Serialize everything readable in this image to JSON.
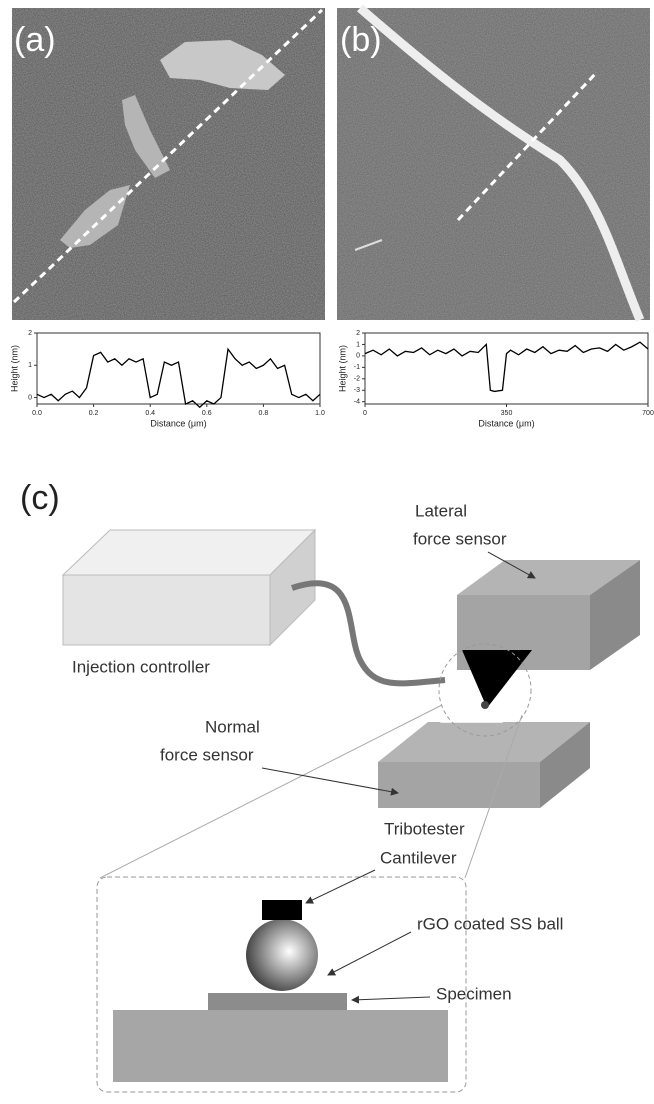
{
  "panels": {
    "a": "(a)",
    "b": "(b)",
    "c": "(c)"
  },
  "chart_data": [
    {
      "type": "line",
      "xlabel": "Distance (μm)",
      "ylabel": "Height (nm)",
      "color": "#000000",
      "x": [
        0,
        0.025,
        0.05,
        0.075,
        0.1,
        0.125,
        0.15,
        0.175,
        0.2,
        0.225,
        0.25,
        0.275,
        0.3,
        0.325,
        0.35,
        0.375,
        0.4,
        0.425,
        0.45,
        0.475,
        0.5,
        0.525,
        0.55,
        0.575,
        0.6,
        0.625,
        0.65,
        0.675,
        0.7,
        0.725,
        0.75,
        0.775,
        0.8,
        0.825,
        0.85,
        0.875,
        0.9,
        0.925,
        0.95,
        0.975,
        1.0
      ],
      "values": [
        0.1,
        0.0,
        0.1,
        -0.1,
        0.1,
        0.2,
        0.0,
        0.3,
        1.3,
        1.4,
        1.1,
        1.2,
        1.0,
        1.2,
        1.1,
        1.2,
        0.0,
        0.1,
        1.1,
        1.0,
        1.1,
        -0.2,
        -0.1,
        -0.3,
        -0.1,
        -0.2,
        0.0,
        1.5,
        1.2,
        1.0,
        1.1,
        0.9,
        1.0,
        1.2,
        0.9,
        1.0,
        0.1,
        0.0,
        0.1,
        -0.1,
        0.1
      ],
      "xlim": [
        0,
        1.0
      ],
      "ylim": [
        -0.2,
        2
      ],
      "xticks": [
        {
          "value": 0,
          "label": "0.0"
        },
        0.2,
        0.4,
        0.6,
        0.8,
        {
          "value": 1,
          "label": "1.0"
        }
      ],
      "yticks": [
        0,
        1,
        2
      ]
    },
    {
      "type": "line",
      "xlabel": "Distance (μm)",
      "ylabel": "Height (nm)",
      "color": "#000000",
      "x": [
        0,
        20,
        40,
        60,
        80,
        100,
        120,
        140,
        160,
        180,
        200,
        220,
        240,
        260,
        280,
        300,
        310,
        320,
        340,
        350,
        360,
        380,
        400,
        420,
        440,
        460,
        480,
        500,
        520,
        540,
        560,
        580,
        600,
        620,
        640,
        660,
        680,
        700
      ],
      "values": [
        0.2,
        0.5,
        0.1,
        0.6,
        0.0,
        0.4,
        0.3,
        0.7,
        0.1,
        0.5,
        0.2,
        0.6,
        0.0,
        0.4,
        0.3,
        1.0,
        -3.0,
        -3.1,
        -3.0,
        0.2,
        0.5,
        0.1,
        0.6,
        0.3,
        0.8,
        0.2,
        0.5,
        0.4,
        0.9,
        0.3,
        0.6,
        0.7,
        0.4,
        1.0,
        0.5,
        0.8,
        1.2,
        0.6
      ],
      "xlim": [
        0,
        700
      ],
      "ylim": [
        -4.2,
        2
      ],
      "xticks": [
        0,
        350,
        700
      ],
      "yticks": [
        -4,
        -3,
        -2,
        -1,
        0,
        1,
        2
      ]
    }
  ],
  "diagram": {
    "injection_controller": "Injection controller",
    "lateral_force_sensor": [
      "Lateral",
      "force sensor"
    ],
    "normal_force_sensor": [
      "Normal",
      "force sensor"
    ],
    "tribotester": "Tribotester",
    "cantilever": "Cantilever",
    "ball": "rGO coated SS ball",
    "specimen": "Specimen"
  }
}
